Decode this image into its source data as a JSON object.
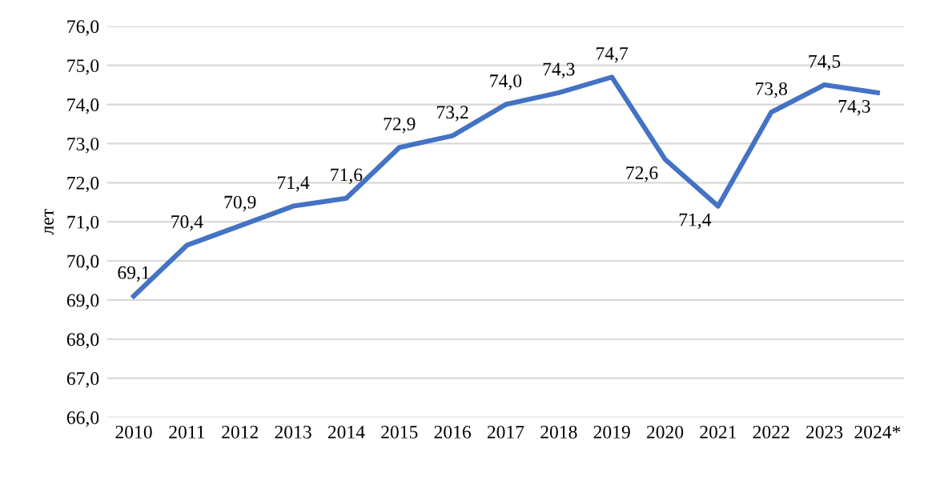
{
  "chart_data": {
    "type": "line",
    "ylabel": "лет",
    "categories": [
      "2010",
      "2011",
      "2012",
      "2013",
      "2014",
      "2015",
      "2016",
      "2017",
      "2018",
      "2019",
      "2020",
      "2021",
      "2022",
      "2023",
      "2024*"
    ],
    "series": [
      {
        "color": "#4472c4",
        "values": [
          69.1,
          70.4,
          70.9,
          71.4,
          71.6,
          72.9,
          73.2,
          74.0,
          74.3,
          74.7,
          72.6,
          71.4,
          73.8,
          74.5,
          74.3
        ],
        "value_labels": [
          "69,1",
          "70,4",
          "70,9",
          "71,4",
          "71,6",
          "72,9",
          "73,2",
          "74,0",
          "74,3",
          "74,7",
          "72,6",
          "71,4",
          "73,8",
          "74,5",
          "74,3"
        ]
      }
    ],
    "ylim": [
      66,
      76
    ],
    "yticks": [
      {
        "value": 66,
        "label": "66,0"
      },
      {
        "value": 67,
        "label": "67,0"
      },
      {
        "value": 68,
        "label": "68,0"
      },
      {
        "value": 69,
        "label": "69,0"
      },
      {
        "value": 70,
        "label": "70,0"
      },
      {
        "value": 71,
        "label": "71,0"
      },
      {
        "value": 72,
        "label": "72,0"
      },
      {
        "value": 73,
        "label": "73,0"
      },
      {
        "value": 74,
        "label": "74,0"
      },
      {
        "value": 75,
        "label": "75,0"
      },
      {
        "value": 76,
        "label": "76,0"
      }
    ],
    "grid": "y",
    "marker": "none",
    "line_style": "solid"
  }
}
